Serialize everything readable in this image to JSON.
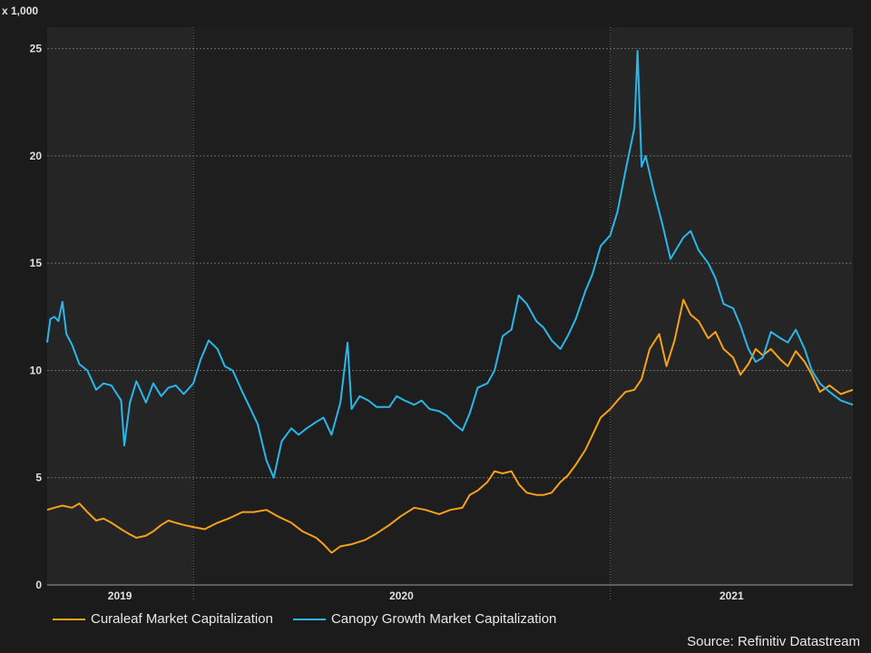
{
  "chart_data": {
    "type": "line",
    "title": "",
    "y_unit_label": "x 1,000",
    "ylim": [
      0,
      26
    ],
    "yticks": [
      "0",
      "5",
      "10",
      "15",
      "20",
      "25"
    ],
    "xlim": [
      "2018-10-01",
      "2021-06-30"
    ],
    "year_ticks": [
      {
        "label": "2019",
        "band_start": "2018-10-01",
        "band_end": "2019-03-31"
      },
      {
        "label": "2020",
        "band_start": "2019-04-01",
        "band_end": "2020-08-31"
      },
      {
        "label": "2021",
        "band_start": "2020-09-01",
        "band_end": "2021-06-30"
      }
    ],
    "grid": true,
    "legend_position": "bottom-left",
    "series": [
      {
        "name": "Curaleaf Market Capitalization",
        "color": "#f7a11a",
        "points": [
          [
            "2018-10-01",
            3.5
          ],
          [
            "2018-10-10",
            3.6
          ],
          [
            "2018-10-20",
            3.7
          ],
          [
            "2018-11-01",
            3.6
          ],
          [
            "2018-11-10",
            3.8
          ],
          [
            "2018-11-20",
            3.4
          ],
          [
            "2018-12-01",
            3.0
          ],
          [
            "2018-12-10",
            3.1
          ],
          [
            "2018-12-20",
            2.9
          ],
          [
            "2019-01-01",
            2.6
          ],
          [
            "2019-01-10",
            2.4
          ],
          [
            "2019-01-20",
            2.2
          ],
          [
            "2019-02-01",
            2.3
          ],
          [
            "2019-02-10",
            2.5
          ],
          [
            "2019-02-20",
            2.8
          ],
          [
            "2019-03-01",
            3.0
          ],
          [
            "2019-03-10",
            2.9
          ],
          [
            "2019-03-20",
            2.8
          ],
          [
            "2019-04-01",
            2.7
          ],
          [
            "2019-04-15",
            2.6
          ],
          [
            "2019-05-01",
            2.9
          ],
          [
            "2019-05-15",
            3.1
          ],
          [
            "2019-06-01",
            3.4
          ],
          [
            "2019-06-15",
            3.4
          ],
          [
            "2019-07-01",
            3.5
          ],
          [
            "2019-07-15",
            3.2
          ],
          [
            "2019-08-01",
            2.9
          ],
          [
            "2019-08-15",
            2.5
          ],
          [
            "2019-09-01",
            2.2
          ],
          [
            "2019-09-10",
            1.9
          ],
          [
            "2019-09-20",
            1.5
          ],
          [
            "2019-10-01",
            1.8
          ],
          [
            "2019-10-15",
            1.9
          ],
          [
            "2019-11-01",
            2.1
          ],
          [
            "2019-11-15",
            2.4
          ],
          [
            "2019-12-01",
            2.8
          ],
          [
            "2019-12-15",
            3.2
          ],
          [
            "2020-01-01",
            3.6
          ],
          [
            "2020-01-15",
            3.5
          ],
          [
            "2020-02-01",
            3.3
          ],
          [
            "2020-02-15",
            3.5
          ],
          [
            "2020-03-01",
            3.6
          ],
          [
            "2020-03-10",
            4.2
          ],
          [
            "2020-03-20",
            4.4
          ],
          [
            "2020-04-01",
            4.8
          ],
          [
            "2020-04-10",
            5.3
          ],
          [
            "2020-04-20",
            5.2
          ],
          [
            "2020-05-01",
            5.3
          ],
          [
            "2020-05-10",
            4.7
          ],
          [
            "2020-05-20",
            4.3
          ],
          [
            "2020-06-01",
            4.2
          ],
          [
            "2020-06-10",
            4.2
          ],
          [
            "2020-06-20",
            4.3
          ],
          [
            "2020-07-01",
            4.8
          ],
          [
            "2020-07-10",
            5.1
          ],
          [
            "2020-07-20",
            5.6
          ],
          [
            "2020-08-01",
            6.3
          ],
          [
            "2020-08-10",
            7.0
          ],
          [
            "2020-08-20",
            7.8
          ],
          [
            "2020-09-01",
            8.2
          ],
          [
            "2020-09-10",
            8.6
          ],
          [
            "2020-09-20",
            9.0
          ],
          [
            "2020-10-01",
            9.1
          ],
          [
            "2020-10-10",
            9.6
          ],
          [
            "2020-10-20",
            11.0
          ],
          [
            "2020-11-01",
            11.7
          ],
          [
            "2020-11-10",
            10.2
          ],
          [
            "2020-11-20",
            11.4
          ],
          [
            "2020-12-01",
            13.3
          ],
          [
            "2020-12-10",
            12.6
          ],
          [
            "2020-12-20",
            12.3
          ],
          [
            "2021-01-01",
            11.5
          ],
          [
            "2021-01-10",
            11.8
          ],
          [
            "2021-01-20",
            11.0
          ],
          [
            "2021-02-01",
            10.6
          ],
          [
            "2021-02-10",
            9.8
          ],
          [
            "2021-02-20",
            10.3
          ],
          [
            "2021-03-01",
            11.0
          ],
          [
            "2021-03-10",
            10.7
          ],
          [
            "2021-03-20",
            11.0
          ],
          [
            "2021-04-01",
            10.5
          ],
          [
            "2021-04-10",
            10.2
          ],
          [
            "2021-04-20",
            10.9
          ],
          [
            "2021-05-01",
            10.4
          ],
          [
            "2021-05-10",
            9.8
          ],
          [
            "2021-05-20",
            9.0
          ],
          [
            "2021-06-01",
            9.3
          ],
          [
            "2021-06-15",
            8.9
          ],
          [
            "2021-06-30",
            9.1
          ]
        ]
      },
      {
        "name": "Canopy Growth Market Capitalization",
        "color": "#29b7ea",
        "points": [
          [
            "2018-10-01",
            11.3
          ],
          [
            "2018-10-05",
            12.4
          ],
          [
            "2018-10-10",
            12.5
          ],
          [
            "2018-10-15",
            12.3
          ],
          [
            "2018-10-20",
            13.2
          ],
          [
            "2018-10-25",
            11.7
          ],
          [
            "2018-11-01",
            11.2
          ],
          [
            "2018-11-10",
            10.3
          ],
          [
            "2018-11-20",
            10.0
          ],
          [
            "2018-12-01",
            9.1
          ],
          [
            "2018-12-10",
            9.4
          ],
          [
            "2018-12-20",
            9.3
          ],
          [
            "2019-01-01",
            8.6
          ],
          [
            "2019-01-05",
            6.5
          ],
          [
            "2019-01-12",
            8.5
          ],
          [
            "2019-01-20",
            9.5
          ],
          [
            "2019-02-01",
            8.5
          ],
          [
            "2019-02-10",
            9.4
          ],
          [
            "2019-02-20",
            8.8
          ],
          [
            "2019-03-01",
            9.2
          ],
          [
            "2019-03-10",
            9.3
          ],
          [
            "2019-03-20",
            8.9
          ],
          [
            "2019-04-01",
            9.4
          ],
          [
            "2019-04-10",
            10.5
          ],
          [
            "2019-04-20",
            11.4
          ],
          [
            "2019-05-01",
            11.0
          ],
          [
            "2019-05-10",
            10.2
          ],
          [
            "2019-05-20",
            10.0
          ],
          [
            "2019-06-01",
            9.0
          ],
          [
            "2019-06-10",
            8.3
          ],
          [
            "2019-06-20",
            7.5
          ],
          [
            "2019-07-01",
            5.8
          ],
          [
            "2019-07-10",
            5.0
          ],
          [
            "2019-07-20",
            6.7
          ],
          [
            "2019-08-01",
            7.3
          ],
          [
            "2019-08-10",
            7.0
          ],
          [
            "2019-08-20",
            7.3
          ],
          [
            "2019-09-01",
            7.6
          ],
          [
            "2019-09-10",
            7.8
          ],
          [
            "2019-09-20",
            7.0
          ],
          [
            "2019-10-01",
            8.5
          ],
          [
            "2019-10-10",
            11.3
          ],
          [
            "2019-10-15",
            8.2
          ],
          [
            "2019-10-25",
            8.8
          ],
          [
            "2019-11-05",
            8.6
          ],
          [
            "2019-11-15",
            8.3
          ],
          [
            "2019-12-01",
            8.3
          ],
          [
            "2019-12-10",
            8.8
          ],
          [
            "2019-12-20",
            8.6
          ],
          [
            "2020-01-01",
            8.4
          ],
          [
            "2020-01-10",
            8.6
          ],
          [
            "2020-01-20",
            8.2
          ],
          [
            "2020-02-01",
            8.1
          ],
          [
            "2020-02-10",
            7.9
          ],
          [
            "2020-02-20",
            7.5
          ],
          [
            "2020-03-01",
            7.2
          ],
          [
            "2020-03-10",
            8.0
          ],
          [
            "2020-03-20",
            9.2
          ],
          [
            "2020-04-01",
            9.4
          ],
          [
            "2020-04-10",
            10.0
          ],
          [
            "2020-04-20",
            11.6
          ],
          [
            "2020-05-01",
            11.9
          ],
          [
            "2020-05-10",
            13.5
          ],
          [
            "2020-05-20",
            13.1
          ],
          [
            "2020-06-01",
            12.3
          ],
          [
            "2020-06-10",
            12.0
          ],
          [
            "2020-06-20",
            11.4
          ],
          [
            "2020-07-01",
            11.0
          ],
          [
            "2020-07-10",
            11.6
          ],
          [
            "2020-07-20",
            12.4
          ],
          [
            "2020-08-01",
            13.7
          ],
          [
            "2020-08-10",
            14.5
          ],
          [
            "2020-08-20",
            15.8
          ],
          [
            "2020-09-01",
            16.3
          ],
          [
            "2020-09-10",
            17.4
          ],
          [
            "2020-09-20",
            19.3
          ],
          [
            "2020-10-01",
            21.3
          ],
          [
            "2020-10-05",
            24.9
          ],
          [
            "2020-10-10",
            19.5
          ],
          [
            "2020-10-15",
            20.0
          ],
          [
            "2020-10-25",
            18.4
          ],
          [
            "2020-11-05",
            16.8
          ],
          [
            "2020-11-15",
            15.2
          ],
          [
            "2020-12-01",
            16.2
          ],
          [
            "2020-12-10",
            16.5
          ],
          [
            "2020-12-20",
            15.6
          ],
          [
            "2021-01-01",
            15.0
          ],
          [
            "2021-01-10",
            14.3
          ],
          [
            "2021-01-20",
            13.1
          ],
          [
            "2021-02-01",
            12.9
          ],
          [
            "2021-02-10",
            12.1
          ],
          [
            "2021-02-20",
            11.0
          ],
          [
            "2021-03-01",
            10.4
          ],
          [
            "2021-03-10",
            10.6
          ],
          [
            "2021-03-20",
            11.8
          ],
          [
            "2021-04-01",
            11.5
          ],
          [
            "2021-04-10",
            11.3
          ],
          [
            "2021-04-20",
            11.9
          ],
          [
            "2021-05-01",
            11.0
          ],
          [
            "2021-05-10",
            10.0
          ],
          [
            "2021-05-20",
            9.4
          ],
          [
            "2021-06-01",
            9.0
          ],
          [
            "2021-06-15",
            8.6
          ],
          [
            "2021-06-30",
            8.4
          ]
        ]
      }
    ],
    "source": "Source: Refinitiv Datastream"
  }
}
